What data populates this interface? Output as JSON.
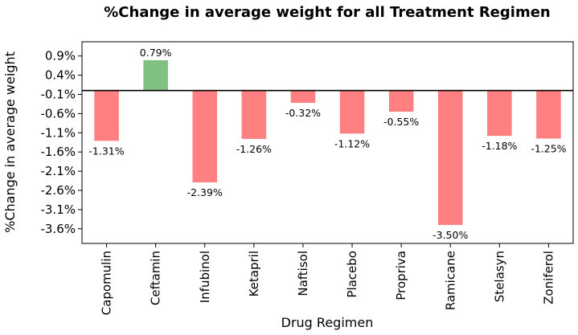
{
  "chart_data": {
    "type": "bar",
    "title": "%Change in average weight for all Treatment Regimen",
    "xlabel": "Drug Regimen",
    "ylabel": "%Change in average weight",
    "categories": [
      "Capomulin",
      "Ceftamin",
      "Infubinol",
      "Ketapril",
      "Naftisol",
      "Placebo",
      "Propriva",
      "Ramicane",
      "Stelasyn",
      "Zoniferol"
    ],
    "values": [
      -1.31,
      0.79,
      -2.39,
      -1.26,
      -0.32,
      -1.12,
      -0.55,
      -3.5,
      -1.18,
      -1.25
    ],
    "data_labels": [
      "-1.31%",
      "0.79%",
      "-2.39%",
      "-1.26%",
      "-0.32%",
      "-1.12%",
      "-0.55%",
      "-3.50%",
      "-1.18%",
      "-1.25%"
    ],
    "yticks": [
      0.9,
      0.4,
      -0.1,
      -0.6,
      -1.1,
      -1.6,
      -2.1,
      -2.6,
      -3.1,
      -3.6
    ],
    "ytick_labels": [
      "0.9%",
      "0.4%",
      "-0.1%",
      "-0.6%",
      "-1.1%",
      "-1.6%",
      "-2.1%",
      "-2.6%",
      "-3.1%",
      "-3.6%"
    ],
    "ylim": [
      -3.98,
      1.27
    ],
    "zero_line": 0,
    "grid": false,
    "colors": {
      "positive": "#80c080",
      "negative": "#ff8080",
      "axis": "#000000",
      "zero_line": "#000000"
    }
  }
}
